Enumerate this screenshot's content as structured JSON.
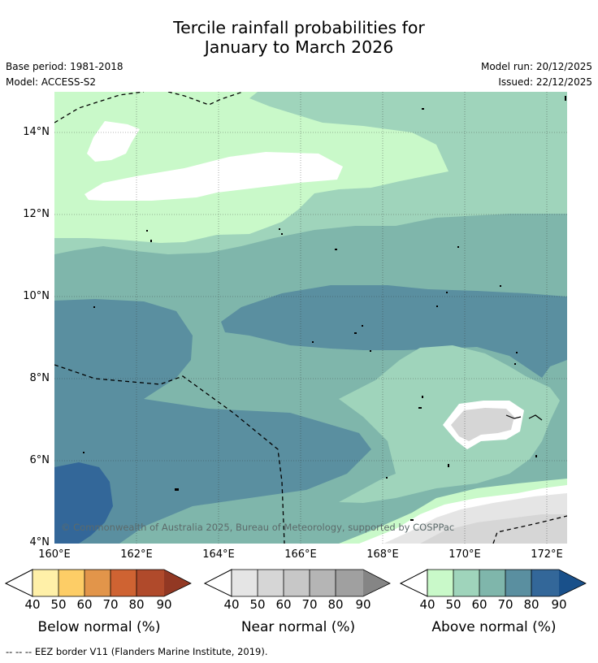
{
  "title": {
    "line1": "Tercile rainfall probabilities for",
    "line2": "January to March 2026"
  },
  "meta": {
    "base_period": "Base period: 1981-2018",
    "model": "Model: ACCESS-S2",
    "model_run": "Model run: 20/12/2025",
    "issued": "Issued: 22/12/2025"
  },
  "map": {
    "copyright": "© Commonwealth of Australia 2025, Bureau of Meteorology, supported by COSPPac",
    "lat_labels": [
      "14°N",
      "12°N",
      "10°N",
      "8°N",
      "6°N",
      "4°N"
    ],
    "lon_labels": [
      "160°E",
      "162°E",
      "164°E",
      "166°E",
      "168°E",
      "170°E",
      "172°E"
    ]
  },
  "legend": {
    "below": {
      "title": "Below normal (%)",
      "ticks": [
        "40",
        "50",
        "60",
        "70",
        "80",
        "90"
      ],
      "colors": [
        "#fff0a8",
        "#fdcd66",
        "#e2954a",
        "#cf6332",
        "#b04a2b",
        "#923823"
      ]
    },
    "near": {
      "title": "Near normal (%)",
      "ticks": [
        "40",
        "50",
        "60",
        "70",
        "80",
        "90"
      ],
      "colors": [
        "#e5e5e5",
        "#d6d6d6",
        "#c7c7c7",
        "#b5b5b5",
        "#a0a0a0",
        "#858585"
      ]
    },
    "above": {
      "title": "Above normal (%)",
      "ticks": [
        "40",
        "50",
        "60",
        "70",
        "80",
        "90"
      ],
      "colors": [
        "#c9f9c9",
        "#9fd4bb",
        "#7fb6ab",
        "#5a8fa0",
        "#336799",
        "#19508a"
      ]
    }
  },
  "footnote": "--  --  -- EEZ border V11 (Flanders Marine Institute, 2019)."
}
